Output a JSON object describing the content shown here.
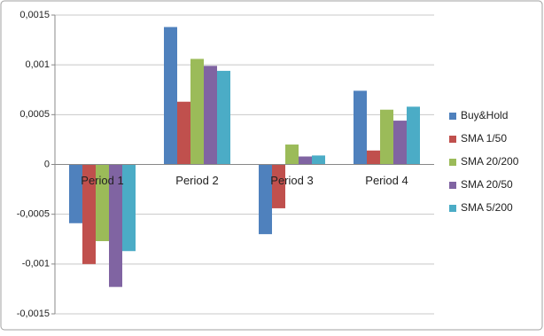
{
  "chart_data": {
    "type": "bar",
    "categories": [
      "Period 1",
      "Period 2",
      "Period 3",
      "Period 4"
    ],
    "series": [
      {
        "name": "Buy&Hold",
        "color": "#4f81bd",
        "values": [
          -0.00059,
          0.00138,
          -0.0007,
          0.00074
        ]
      },
      {
        "name": "SMA 1/50",
        "color": "#c0504d",
        "values": [
          -0.001,
          0.00063,
          -0.00044,
          0.00014
        ]
      },
      {
        "name": "SMA 20/200",
        "color": "#9bbb59",
        "values": [
          -0.00077,
          0.00106,
          0.0002,
          0.00055
        ]
      },
      {
        "name": "SMA 20/50",
        "color": "#8064a2",
        "values": [
          -0.00123,
          0.00099,
          8e-05,
          0.00044
        ]
      },
      {
        "name": "SMA 5/200",
        "color": "#4bacc6",
        "values": [
          -0.00087,
          0.00094,
          9e-05,
          0.00058
        ]
      }
    ],
    "ylim": [
      -0.0015,
      0.0015
    ],
    "yticks": [
      {
        "value": -0.0015,
        "label": "-0,0015"
      },
      {
        "value": -0.001,
        "label": "-0,001"
      },
      {
        "value": -0.0005,
        "label": "-0,0005"
      },
      0,
      {
        "value": 0.0005,
        "label": "0,0005"
      },
      {
        "value": 0.001,
        "label": "0,001"
      },
      {
        "value": 0.0015,
        "label": "0,0015"
      }
    ],
    "grid": true,
    "legend": "right"
  }
}
